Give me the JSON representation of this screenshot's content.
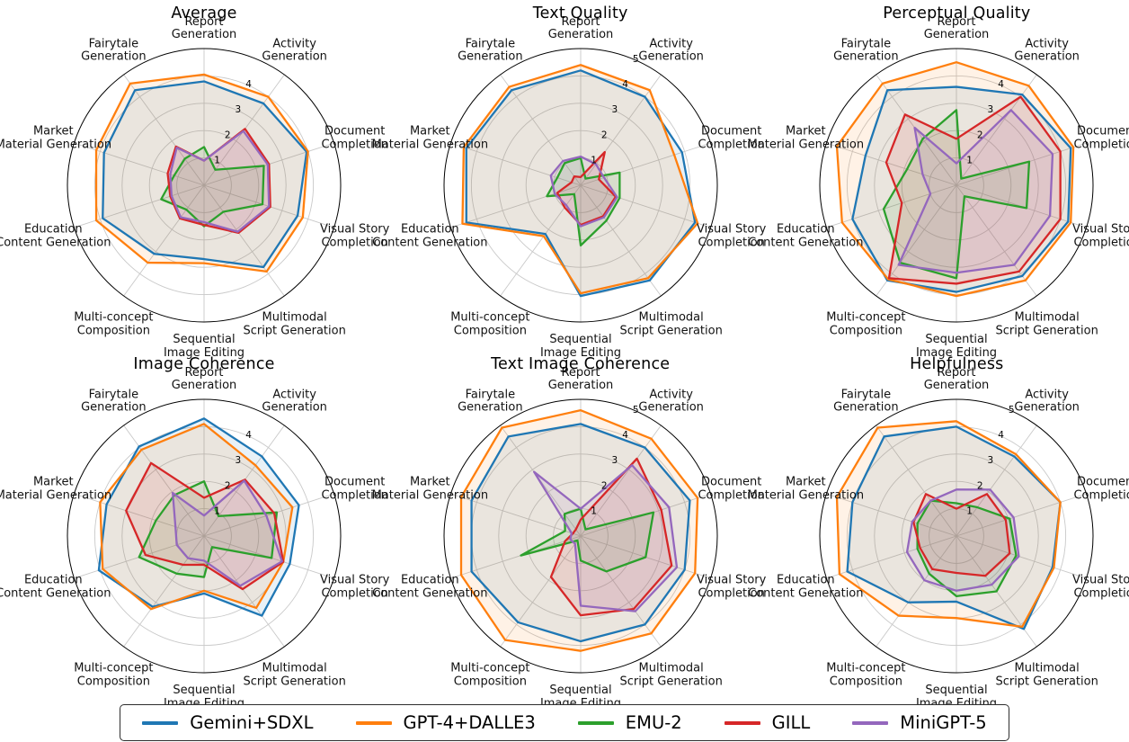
{
  "figure": {
    "background": "#ffffff",
    "grid_color": "#c9c9c9",
    "outline_color": "#000000"
  },
  "legend": {
    "position": "bottom-center",
    "entries": [
      {
        "label": "Gemini+SDXL",
        "color": "#1f77b4"
      },
      {
        "label": "GPT-4+DALLE3",
        "color": "#ff7f0e"
      },
      {
        "label": "EMU-2",
        "color": "#2ca02c"
      },
      {
        "label": "GILL",
        "color": "#d62728"
      },
      {
        "label": "MiniGPT-5",
        "color": "#9467bd"
      }
    ]
  },
  "chart_data": [
    {
      "type": "radar",
      "title": "Average",
      "rmax": 5,
      "ticks": [
        1,
        2,
        3,
        4
      ],
      "grid": true,
      "categories": [
        "Report\nGeneration",
        "Activity\nGeneration",
        "Document\nCompletion",
        "Visual Story\nCompletion",
        "Multimodal\nScript Generation",
        "Sequential\nImage Editing",
        "Multi-concept\nComposition",
        "Education\nContent Generation",
        "Market\nMaterial Generation",
        "Fairytale\nGeneration"
      ],
      "series": [
        {
          "name": "Gemini+SDXL",
          "color": "#1f77b4",
          "values": [
            3.8,
            3.7,
            3.95,
            3.6,
            3.7,
            2.7,
            3.1,
            3.9,
            3.85,
            4.3
          ]
        },
        {
          "name": "GPT-4+DALLE3",
          "color": "#ff7f0e",
          "values": [
            4.05,
            4.0,
            4.0,
            3.8,
            3.9,
            2.85,
            3.5,
            4.15,
            4.15,
            4.6
          ]
        },
        {
          "name": "EMU-2",
          "color": "#2ca02c",
          "values": [
            1.4,
            0.7,
            2.3,
            2.25,
            1.2,
            1.5,
            1.1,
            1.65,
            1.15,
            1.2
          ]
        },
        {
          "name": "GILL",
          "color": "#d62728",
          "values": [
            0.9,
            2.55,
            2.5,
            2.55,
            2.15,
            1.45,
            1.5,
            1.3,
            1.4,
            1.75
          ]
        },
        {
          "name": "MiniGPT-5",
          "color": "#9467bd",
          "values": [
            0.9,
            2.45,
            2.45,
            2.5,
            2.1,
            1.35,
            1.45,
            1.25,
            1.3,
            1.7
          ]
        }
      ]
    },
    {
      "type": "radar",
      "title": "Text Quality",
      "rmax": 5,
      "ticks": [
        1,
        2,
        3,
        4,
        5
      ],
      "grid": true,
      "categories": [
        "Report\nGeneration",
        "Activity\nGeneration",
        "Document\nCompletion",
        "Visual Story\nCompletion",
        "Multimodal\nScript Generation",
        "Sequential\nImage Editing",
        "Multi-concept\nComposition",
        "Education\nContent Generation",
        "Market\nMaterial Generation",
        "Fairytale\nGeneration"
      ],
      "series": [
        {
          "name": "Gemini+SDXL",
          "color": "#1f77b4",
          "values": [
            4.2,
            4.0,
            3.9,
            4.4,
            4.3,
            4.05,
            2.2,
            4.4,
            4.4,
            4.3
          ]
        },
        {
          "name": "GPT-4+DALLE3",
          "color": "#ff7f0e",
          "values": [
            4.4,
            4.3,
            3.6,
            4.5,
            4.2,
            3.95,
            2.3,
            4.55,
            4.5,
            4.45
          ]
        },
        {
          "name": "EMU-2",
          "color": "#2ca02c",
          "values": [
            1.0,
            0.3,
            1.5,
            1.5,
            1.6,
            2.2,
            0.4,
            1.3,
            0.9,
            1.0
          ]
        },
        {
          "name": "GILL",
          "color": "#d62728",
          "values": [
            0.3,
            1.5,
            0.7,
            1.35,
            1.4,
            1.45,
            1.0,
            0.9,
            0.35,
            0.4
          ]
        },
        {
          "name": "MiniGPT-5",
          "color": "#9467bd",
          "values": [
            1.05,
            0.95,
            0.9,
            1.4,
            1.45,
            1.5,
            0.9,
            1.0,
            1.15,
            1.1
          ]
        }
      ]
    },
    {
      "type": "radar",
      "title": "Perceptual Quality",
      "rmax": 5,
      "ticks": [
        1,
        2,
        3,
        4
      ],
      "grid": true,
      "categories": [
        "Report\nGeneration",
        "Activity\nGeneration",
        "Document\nCompletion",
        "Visual Story\nCompletion",
        "Multimodal\nScript Generation",
        "Sequential\nImage Editing",
        "Multi-concept\nComposition",
        "Education\nContent Generation",
        "Market\nMaterial Generation",
        "Fairytale\nGeneration"
      ],
      "series": [
        {
          "name": "Gemini+SDXL",
          "color": "#1f77b4",
          "values": [
            3.6,
            4.1,
            4.4,
            4.3,
            4.1,
            3.9,
            4.3,
            4.0,
            3.5,
            4.3
          ]
        },
        {
          "name": "GPT-4+DALLE3",
          "color": "#ff7f0e",
          "values": [
            4.5,
            4.5,
            4.5,
            4.4,
            4.3,
            4.05,
            4.25,
            4.4,
            4.6,
            4.6
          ]
        },
        {
          "name": "EMU-2",
          "color": "#2ca02c",
          "values": [
            2.75,
            0.3,
            2.8,
            2.7,
            0.5,
            3.4,
            3.5,
            2.8,
            1.9,
            2.1
          ]
        },
        {
          "name": "GILL",
          "color": "#d62728",
          "values": [
            1.7,
            4.0,
            4.0,
            4.0,
            3.9,
            3.6,
            4.2,
            2.1,
            2.7,
            3.2
          ]
        },
        {
          "name": "MiniGPT-5",
          "color": "#9467bd",
          "values": [
            0.8,
            3.4,
            3.7,
            3.6,
            3.6,
            3.2,
            3.6,
            1.0,
            1.3,
            2.6
          ]
        }
      ]
    },
    {
      "type": "radar",
      "title": "Image Coherence",
      "rmax": 5,
      "ticks": [
        1,
        2,
        3,
        4
      ],
      "grid": true,
      "categories": [
        "Report\nGeneration",
        "Activity\nGeneration",
        "Document\nCompletion",
        "Visual Story\nCompletion",
        "Multimodal\nScript Generation",
        "Sequential\nImage Editing",
        "Multi-concept\nComposition",
        "Education\nContent Generation",
        "Market\nMaterial Generation",
        "Fairytale\nGeneration"
      ],
      "series": [
        {
          "name": "Gemini+SDXL",
          "color": "#1f77b4",
          "values": [
            4.3,
            3.6,
            3.65,
            3.3,
            3.6,
            2.1,
            3.2,
            4.05,
            3.75,
            4.05
          ]
        },
        {
          "name": "GPT-4+DALLE3",
          "color": "#ff7f0e",
          "values": [
            4.1,
            3.2,
            3.4,
            3.05,
            3.25,
            2.0,
            3.3,
            3.9,
            4.0,
            3.9
          ]
        },
        {
          "name": "EMU-2",
          "color": "#2ca02c",
          "values": [
            2.0,
            0.9,
            2.8,
            2.6,
            0.5,
            1.5,
            1.7,
            2.5,
            1.85,
            1.85
          ]
        },
        {
          "name": "GILL",
          "color": "#d62728",
          "values": [
            1.4,
            2.55,
            2.7,
            3.05,
            2.4,
            1.05,
            1.3,
            2.25,
            3.0,
            3.3
          ]
        },
        {
          "name": "MiniGPT-5",
          "color": "#9467bd",
          "values": [
            0.75,
            2.5,
            2.4,
            3.0,
            2.25,
            0.9,
            1.0,
            1.05,
            1.1,
            1.95
          ]
        }
      ]
    },
    {
      "type": "radar",
      "title": "Text Image Coherence",
      "rmax": 5,
      "ticks": [
        1,
        2,
        3,
        4,
        5
      ],
      "grid": true,
      "categories": [
        "Report\nGeneration",
        "Activity\nGeneration",
        "Document\nCompletion",
        "Visual Story\nCompletion",
        "Multimodal\nScript Generation",
        "Sequential\nImage Editing",
        "Multi-concept\nComposition",
        "Education\nContent Generation",
        "Market\nMaterial Generation",
        "Fairytale\nGeneration"
      ],
      "series": [
        {
          "name": "Gemini+SDXL",
          "color": "#1f77b4",
          "values": [
            4.1,
            4.0,
            4.2,
            4.0,
            4.0,
            3.85,
            3.9,
            4.2,
            4.2,
            4.5
          ]
        },
        {
          "name": "GPT-4+DALLE3",
          "color": "#ff7f0e",
          "values": [
            4.6,
            4.4,
            4.5,
            4.4,
            4.4,
            4.2,
            4.7,
            4.6,
            4.6,
            4.9
          ]
        },
        {
          "name": "EMU-2",
          "color": "#2ca02c",
          "values": [
            1.0,
            0.3,
            2.8,
            2.5,
            1.6,
            0.9,
            0.2,
            2.3,
            0.6,
            1.0
          ]
        },
        {
          "name": "GILL",
          "color": "#d62728",
          "values": [
            0.6,
            3.5,
            3.1,
            3.5,
            3.3,
            2.9,
            1.85,
            0.6,
            0.3,
            0.3
          ]
        },
        {
          "name": "MiniGPT-5",
          "color": "#9467bd",
          "values": [
            1.0,
            3.2,
            3.4,
            3.7,
            3.4,
            2.55,
            0.35,
            0.4,
            0.35,
            2.9
          ]
        }
      ]
    },
    {
      "type": "radar",
      "title": "Helpfulness",
      "rmax": 5,
      "ticks": [
        1,
        2,
        3,
        4,
        5
      ],
      "grid": true,
      "categories": [
        "Report\nGeneration",
        "Activity\nGeneration",
        "Document\nCompletion",
        "Visual Story\nCompletion",
        "Multimodal\nScript Generation",
        "Sequential\nImage Editing",
        "Multi-concept\nComposition",
        "Education\nContent Generation",
        "Market\nMaterial Generation",
        "Fairytale\nGeneration"
      ],
      "series": [
        {
          "name": "Gemini+SDXL",
          "color": "#1f77b4",
          "values": [
            4.0,
            3.6,
            4.0,
            3.7,
            4.2,
            2.4,
            3.0,
            4.2,
            4.0,
            4.5
          ]
        },
        {
          "name": "GPT-4+DALLE3",
          "color": "#ff7f0e",
          "values": [
            4.2,
            3.7,
            4.0,
            3.75,
            4.1,
            3.0,
            3.6,
            4.5,
            4.6,
            4.9
          ]
        },
        {
          "name": "EMU-2",
          "color": "#2ca02c",
          "values": [
            1.2,
            1.3,
            2.05,
            2.3,
            2.5,
            2.2,
            1.7,
            1.5,
            1.5,
            1.6
          ]
        },
        {
          "name": "GILL",
          "color": "#d62728",
          "values": [
            1.0,
            1.9,
            1.9,
            2.05,
            1.8,
            1.35,
            1.5,
            1.4,
            1.65,
            1.9
          ]
        },
        {
          "name": "MiniGPT-5",
          "color": "#9467bd",
          "values": [
            1.7,
            2.1,
            2.2,
            2.4,
            2.2,
            2.0,
            2.0,
            1.9,
            1.7,
            1.6
          ]
        }
      ]
    }
  ]
}
